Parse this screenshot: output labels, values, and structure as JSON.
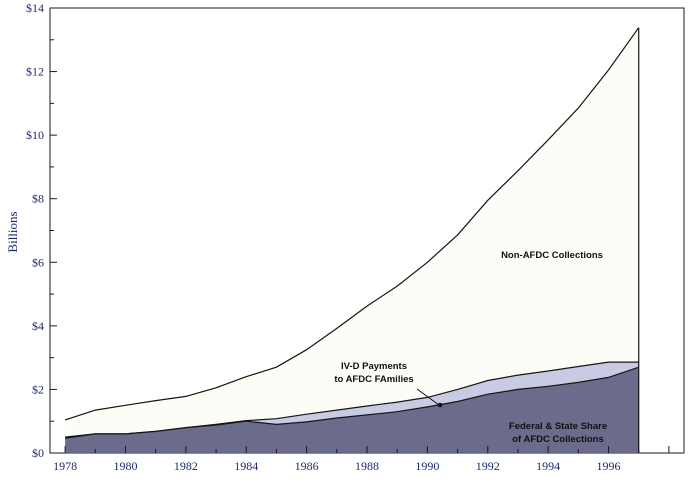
{
  "chart_data": {
    "type": "area",
    "title": "",
    "xlabel": "",
    "ylabel": "Billions",
    "xlim": [
      1977.5,
      1998.5
    ],
    "ylim": [
      0,
      14
    ],
    "x_ticks": [
      1978,
      1980,
      1982,
      1984,
      1986,
      1988,
      1990,
      1992,
      1994,
      1996
    ],
    "x_tick_labels": [
      "1978",
      "1980",
      "1982",
      "1984",
      "1986",
      "1988",
      "1990",
      "1992",
      "1994",
      "1996"
    ],
    "y_ticks": [
      0,
      2,
      4,
      6,
      8,
      10,
      12,
      14
    ],
    "y_tick_labels": [
      "$0",
      "$2",
      "$4",
      "$6",
      "$8",
      "$10",
      "$12",
      "$14"
    ],
    "stacked": true,
    "x": [
      1978,
      1979,
      1980,
      1981,
      1982,
      1983,
      1984,
      1985,
      1986,
      1987,
      1988,
      1989,
      1990,
      1991,
      1992,
      1993,
      1994,
      1995,
      1996,
      1997
    ],
    "series": [
      {
        "name": "Federal & State Share of AFDC Collections",
        "label_lines": [
          "Federal & State Share",
          "of AFDC Collections"
        ],
        "color": "#6b6b8c",
        "cumulative": [
          0.47,
          0.6,
          0.6,
          0.68,
          0.8,
          0.88,
          1.0,
          0.9,
          0.98,
          1.1,
          1.2,
          1.3,
          1.45,
          1.62,
          1.85,
          2.0,
          2.1,
          2.22,
          2.38,
          2.7
        ]
      },
      {
        "name": "IV-D Payments to AFDC FAmilies",
        "label_lines": [
          "IV-D Payments",
          "to AFDC FAmilies"
        ],
        "color": "#c9cbe4",
        "cumulative": [
          0.5,
          0.6,
          0.6,
          0.68,
          0.8,
          0.9,
          1.02,
          1.08,
          1.22,
          1.35,
          1.48,
          1.6,
          1.75,
          2.0,
          2.28,
          2.45,
          2.58,
          2.72,
          2.86,
          2.86
        ]
      },
      {
        "name": "Non-AFDC Collections",
        "label_lines": [
          "Non-AFDC Collections"
        ],
        "color": "#fdfdf8",
        "cumulative": [
          1.04,
          1.35,
          1.5,
          1.65,
          1.78,
          2.05,
          2.4,
          2.7,
          3.25,
          3.92,
          4.62,
          5.25,
          6.0,
          6.86,
          7.95,
          8.88,
          9.85,
          10.85,
          12.05,
          13.38
        ]
      }
    ],
    "annotations": [
      {
        "series": "Non-AFDC Collections"
      },
      {
        "series": "IV-D Payments to AFDC FAmilies",
        "arrow": true
      },
      {
        "series": "Federal & State Share of AFDC Collections"
      }
    ]
  }
}
